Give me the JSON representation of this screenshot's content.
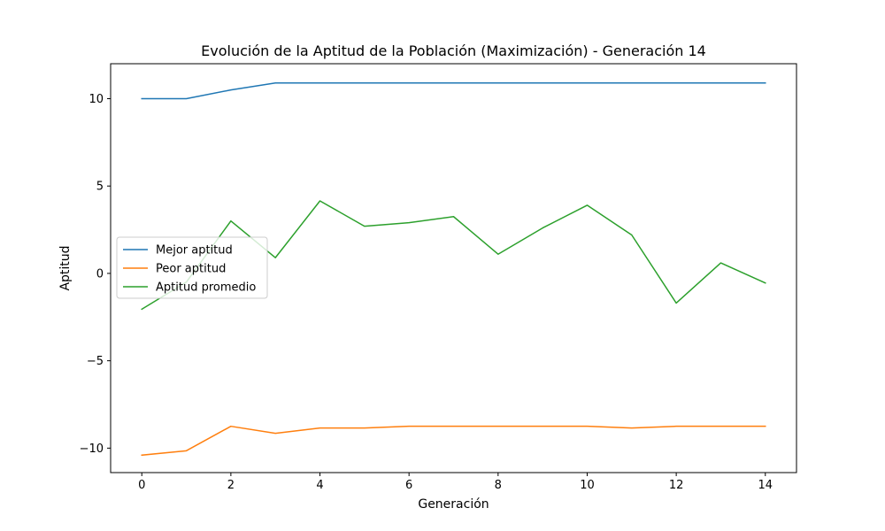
{
  "chart_data": {
    "type": "line",
    "title": "Evolución de la Aptitud de la Población (Maximización) - Generación 14",
    "xlabel": "Generación",
    "ylabel": "Aptitud",
    "x": [
      0,
      1,
      2,
      3,
      4,
      5,
      6,
      7,
      8,
      9,
      10,
      11,
      12,
      13,
      14
    ],
    "xlim": [
      -0.7,
      14.7
    ],
    "ylim": [
      -11.4,
      12.0
    ],
    "xticks": [
      0,
      2,
      4,
      6,
      8,
      10,
      12,
      14
    ],
    "yticks": [
      -10,
      -5,
      0,
      5,
      10
    ],
    "ytick_labels": [
      "−10",
      "−5",
      "0",
      "5",
      "10"
    ],
    "grid": false,
    "legend_position": "center-left",
    "series": [
      {
        "name": "Mejor aptitud",
        "color": "#1f77b4",
        "values": [
          10.0,
          10.0,
          10.5,
          10.9,
          10.9,
          10.9,
          10.9,
          10.9,
          10.9,
          10.9,
          10.9,
          10.9,
          10.9,
          10.9,
          10.9
        ]
      },
      {
        "name": "Peor aptitud",
        "color": "#ff7f0e",
        "values": [
          -10.4,
          -10.15,
          -8.75,
          -9.15,
          -8.85,
          -8.85,
          -8.75,
          -8.75,
          -8.75,
          -8.75,
          -8.75,
          -8.85,
          -8.75,
          -8.75,
          -8.75
        ]
      },
      {
        "name": "Aptitud promedio",
        "color": "#2ca02c",
        "values": [
          -2.05,
          -0.5,
          3.0,
          0.9,
          4.15,
          2.7,
          2.9,
          3.25,
          1.1,
          2.6,
          3.9,
          2.2,
          -1.7,
          0.6,
          -0.55
        ]
      }
    ]
  }
}
